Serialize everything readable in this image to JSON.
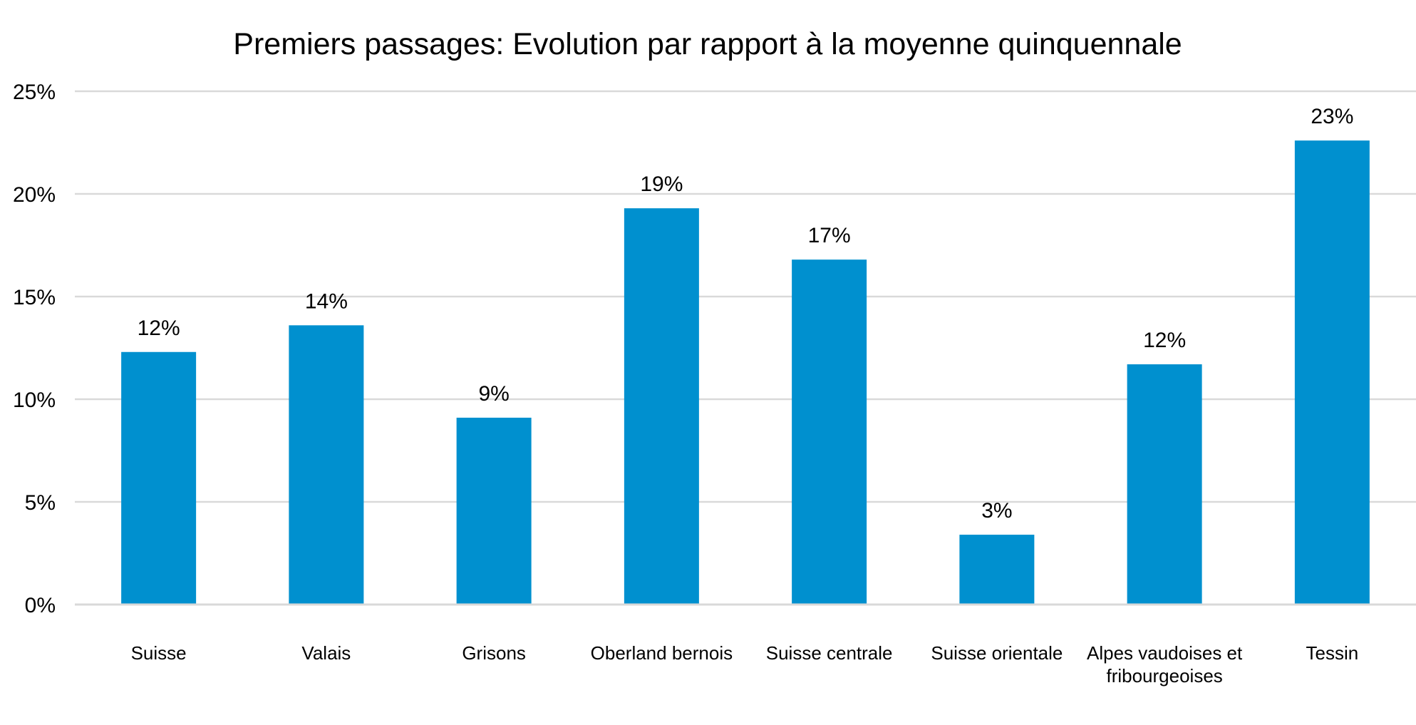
{
  "chart_data": {
    "type": "bar",
    "title": "Premiers passages: Evolution par rapport à la moyenne quinquennale",
    "xlabel": "",
    "ylabel": "",
    "ylim": [
      0,
      25
    ],
    "y_ticks": [
      {
        "value": 0,
        "label": "0%"
      },
      {
        "value": 5,
        "label": "5%"
      },
      {
        "value": 10,
        "label": "10%"
      },
      {
        "value": 15,
        "label": "15%"
      },
      {
        "value": 20,
        "label": "20%"
      },
      {
        "value": 25,
        "label": "25%"
      }
    ],
    "grid": true,
    "legend": "none",
    "bar_color": "#0090CF",
    "categories": [
      [
        "Suisse"
      ],
      [
        "Valais"
      ],
      [
        "Grisons"
      ],
      [
        "Oberland bernois"
      ],
      [
        "Suisse centrale"
      ],
      [
        "Suisse orientale"
      ],
      [
        "Alpes vaudoises et",
        "fribourgeoises"
      ],
      [
        "Tessin"
      ]
    ],
    "values": [
      12.3,
      13.6,
      9.1,
      19.3,
      16.8,
      3.4,
      11.7,
      22.6
    ],
    "data_labels": [
      "12%",
      "14%",
      "9%",
      "19%",
      "17%",
      "3%",
      "12%",
      "23%"
    ]
  }
}
